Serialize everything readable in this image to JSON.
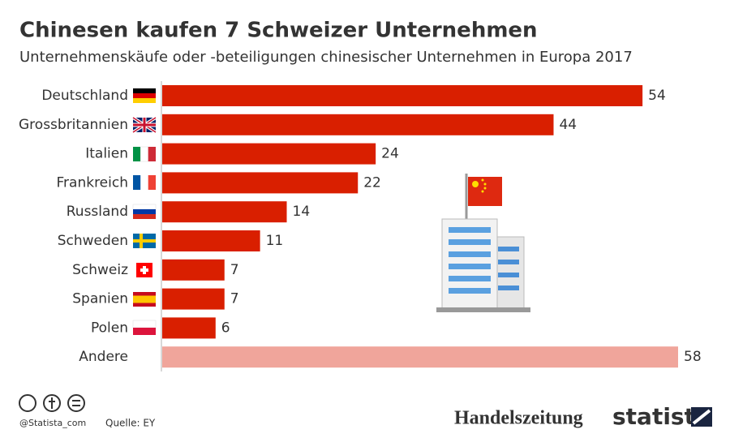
{
  "chart_data": {
    "type": "hbar",
    "title": "Chinesen kaufen 7 Schweizer Unternehmen",
    "subtitle": "Unternehmenskäufe oder -beteiligungen chinesischer Unternehmen in Europa 2017",
    "categories": [
      "Deutschland",
      "Grossbritannien",
      "Italien",
      "Frankreich",
      "Russland",
      "Schweden",
      "Schweiz",
      "Spanien",
      "Polen",
      "Andere"
    ],
    "values": [
      54,
      44,
      24,
      22,
      14,
      11,
      7,
      7,
      6,
      58
    ],
    "colors": [
      "#d91f00",
      "#d91f00",
      "#d91f00",
      "#d91f00",
      "#d91f00",
      "#d91f00",
      "#d91f00",
      "#d91f00",
      "#d91f00",
      "#f0a59b"
    ]
  },
  "footer": {
    "handle": "@Statista_com",
    "source": "Quelle: EY",
    "partner": "Handelszeitung",
    "brand": "statista"
  }
}
